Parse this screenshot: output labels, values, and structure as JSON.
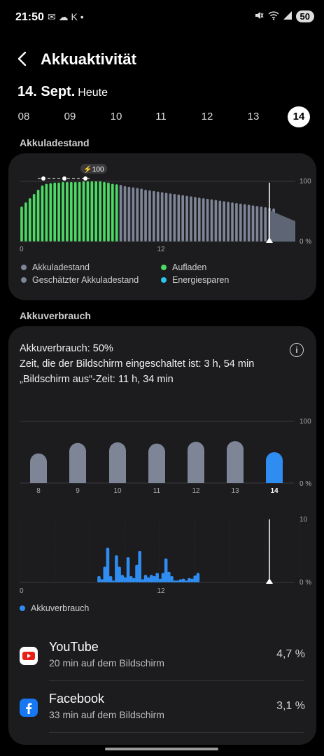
{
  "status": {
    "time": "21:50",
    "left_icons": "✉ ☁ K •",
    "battery": "50"
  },
  "header": {
    "title": "Akkuaktivität",
    "back_icon": "chevron-left-icon"
  },
  "date": {
    "main": "14. Sept.",
    "sub": "Heute"
  },
  "days": [
    {
      "label": "08",
      "selected": false
    },
    {
      "label": "09",
      "selected": false
    },
    {
      "label": "10",
      "selected": false
    },
    {
      "label": "11",
      "selected": false
    },
    {
      "label": "12",
      "selected": false
    },
    {
      "label": "13",
      "selected": false
    },
    {
      "label": "14",
      "selected": true
    }
  ],
  "sections": {
    "level": "Akkuladestand",
    "usage": "Akkuverbrauch"
  },
  "level_chart": {
    "badge": "⚡100",
    "y_top": "100",
    "y_bottom": "0 %",
    "x_start": "0",
    "x_mid": "12",
    "legend": [
      {
        "label": "Akkuladestand",
        "color": "#7d8597"
      },
      {
        "label": "Aufladen",
        "color": "#4cd964"
      },
      {
        "label": "Geschätzter Akkuladestand",
        "color": "#7d8597"
      },
      {
        "label": "Energiesparen",
        "color": "#2ec5e6"
      }
    ]
  },
  "usage": {
    "line1": "Akkuverbrauch: 50%",
    "line2": "Zeit, die der Bildschirm eingeschaltet ist: 3 h, 54 min",
    "line3": "„Bildschirm aus“-Zeit: 11 h, 34 min",
    "info_icon": "info-icon"
  },
  "chart_data": [
    {
      "type": "bar",
      "title": "",
      "categories": [
        "8",
        "9",
        "10",
        "11",
        "12",
        "13",
        "14"
      ],
      "values": [
        48,
        65,
        66,
        64,
        67,
        68,
        50
      ],
      "ylim": [
        0,
        100
      ],
      "y_top_label": "100",
      "y_bottom_label": "0 %",
      "highlight_index": 6,
      "colors": {
        "normal": "#7d8597",
        "highlight": "#2f8cf0"
      }
    },
    {
      "type": "bar",
      "title": "",
      "x_labels": [
        "0",
        "12"
      ],
      "values": [
        0,
        0,
        0,
        0,
        0,
        0,
        0,
        0,
        0,
        0,
        0,
        0,
        0,
        0,
        0,
        0,
        0,
        0,
        0,
        0,
        0,
        0,
        0,
        0,
        0,
        0,
        1,
        0.5,
        2.5,
        5.5,
        1,
        0.3,
        4.3,
        2.5,
        1.2,
        0.8,
        4,
        1,
        0.7,
        2.8,
        5,
        0.5,
        1.2,
        0.8,
        1.2,
        1,
        1.5,
        0.6,
        1.5,
        3.8,
        1.7,
        1,
        0.3,
        0.3,
        0.5,
        0.6,
        0.3,
        0.7,
        0.6,
        1.1,
        1.5,
        0
      ],
      "ylim": [
        0,
        10
      ],
      "y_top_label": "10",
      "y_bottom_label": "0 %",
      "legend": "Akkuverbrauch",
      "color": "#2f8cf0"
    }
  ],
  "level_values": [
    58,
    65,
    72,
    79,
    86,
    93,
    96,
    97,
    98,
    98,
    99,
    99,
    99,
    99,
    99,
    100,
    100,
    100,
    100,
    100,
    99,
    98,
    96,
    95,
    94,
    92,
    91,
    90,
    89,
    88,
    86,
    85,
    84,
    83,
    82,
    81,
    80,
    79,
    78,
    77,
    76,
    75,
    74,
    73,
    72,
    71,
    70,
    69,
    68,
    67,
    66,
    65,
    64,
    63,
    62,
    61,
    60,
    59,
    58,
    57,
    56,
    55
  ],
  "level_charging_count": 24,
  "apps": [
    {
      "name": "YouTube",
      "sub": "20 min auf dem Bildschirm",
      "pct": "4,7 %",
      "icon": "youtube-icon"
    },
    {
      "name": "Facebook",
      "sub": "33 min auf dem Bildschirm",
      "pct": "3,1 %",
      "icon": "facebook-icon"
    }
  ]
}
